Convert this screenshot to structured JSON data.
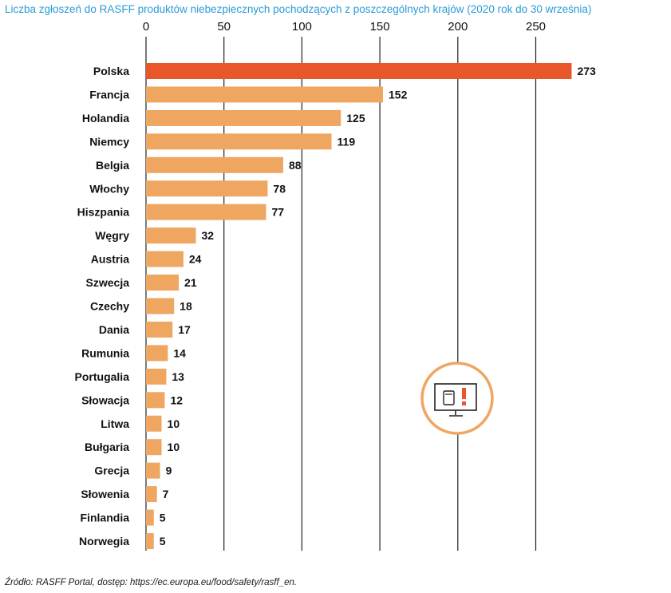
{
  "title": "Liczba zgłoszeń do RASFF produktów niebezpiecznych pochodzących z poszczególnych krajów (2020 rok do 30 września)",
  "source": "Źródło: RASFF Portal, dostęp: https://ec.europa.eu/food/safety/rasff_en.",
  "icon_name": "monitor-alert-icon",
  "colors": {
    "highlight": "#e8562a",
    "bar": "#efa661",
    "highlight_label": "#e8562a",
    "grid": "#222222",
    "icon_ring": "#efa661",
    "title": "#2a9bd6"
  },
  "chart_data": {
    "type": "bar",
    "orientation": "horizontal",
    "title": "Liczba zgłoszeń do RASFF produktów niebezpiecznych pochodzących z poszczególnych krajów (2020 rok do 30 września)",
    "categories": [
      "Polska",
      "Francja",
      "Holandia",
      "Niemcy",
      "Belgia",
      "Włochy",
      "Hiszpania",
      "Węgry",
      "Austria",
      "Szwecja",
      "Czechy",
      "Dania",
      "Rumunia",
      "Portugalia",
      "Słowacja",
      "Litwa",
      "Bułgaria",
      "Grecja",
      "Słowenia",
      "Finlandia",
      "Norwegia"
    ],
    "values": [
      273,
      152,
      125,
      119,
      88,
      78,
      77,
      32,
      24,
      21,
      18,
      17,
      14,
      13,
      12,
      10,
      10,
      9,
      7,
      5,
      5
    ],
    "highlight": "Polska",
    "xlim": [
      0,
      273
    ],
    "xticks": [
      0,
      50,
      100,
      150,
      200,
      250
    ],
    "grid": true,
    "xlabel": "",
    "ylabel": ""
  }
}
